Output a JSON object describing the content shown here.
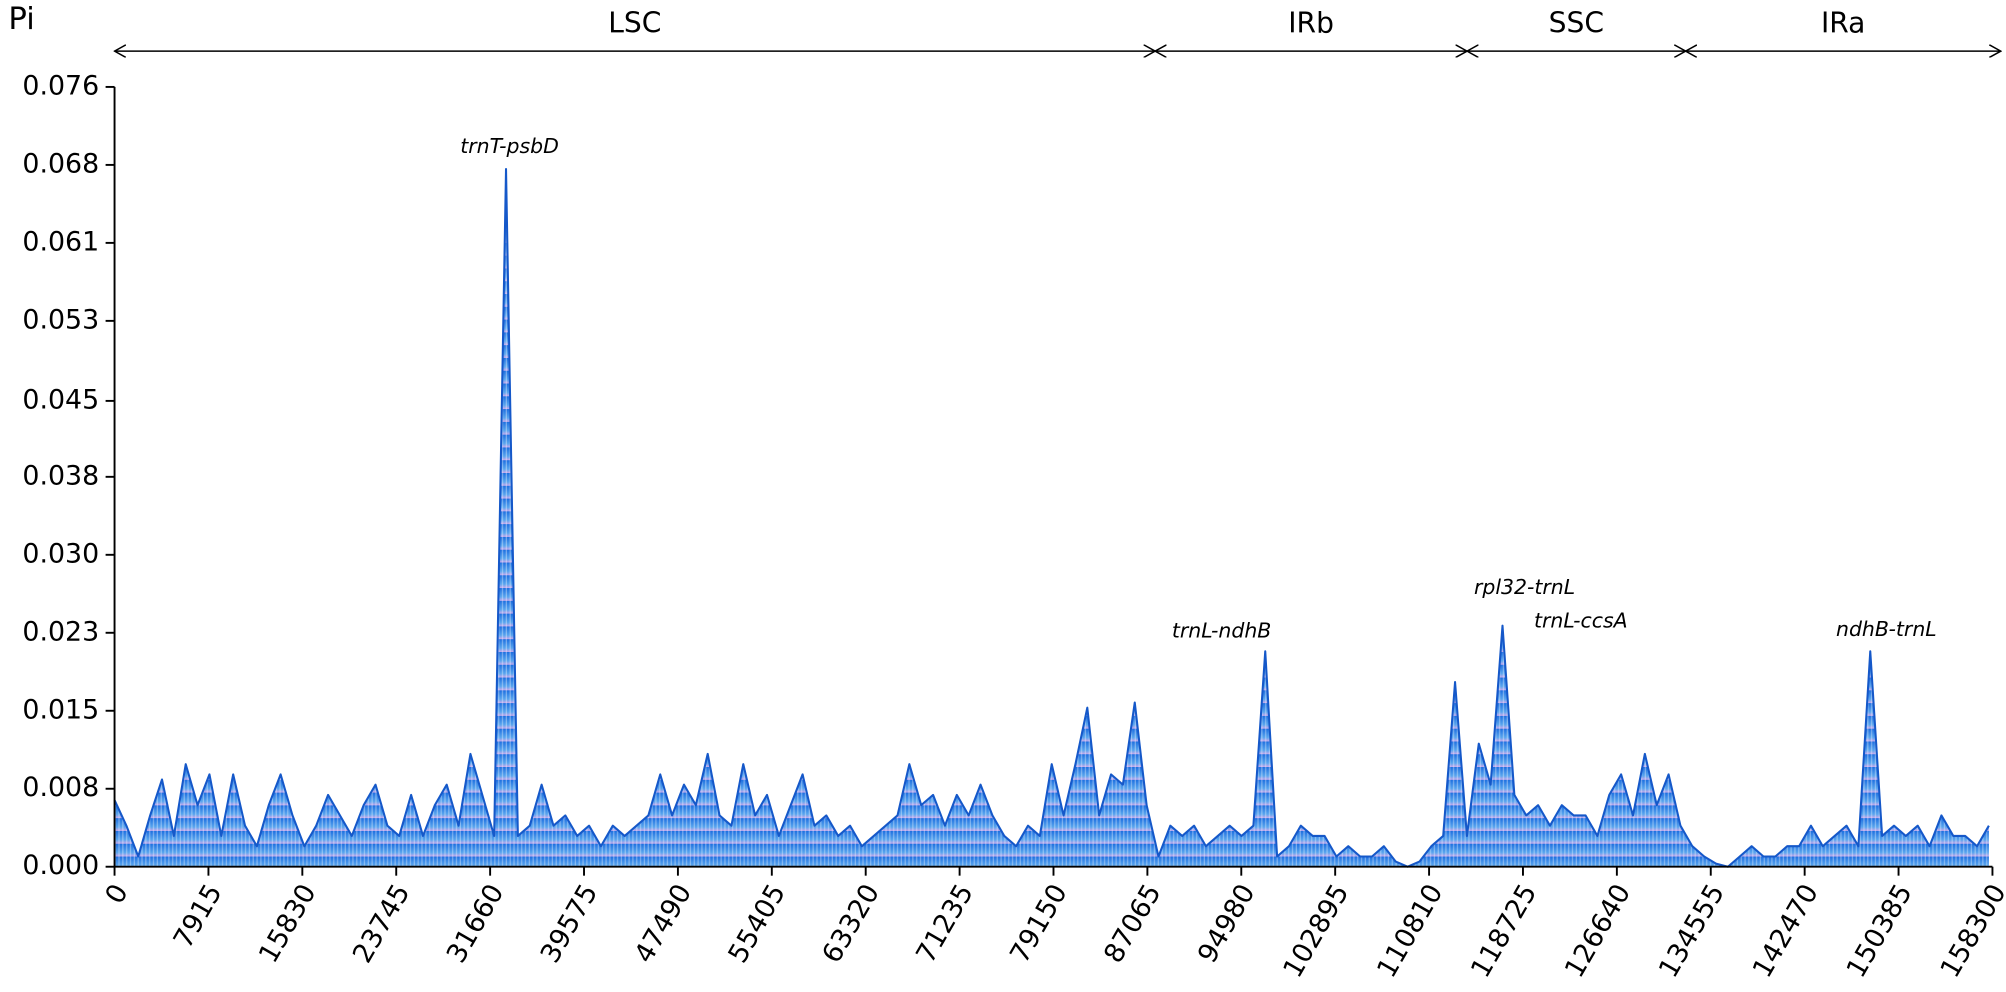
{
  "chart_data": {
    "type": "area",
    "y_label": "Pi",
    "color": "#1558c9",
    "x": [
      0,
      1000,
      2000,
      3000,
      4000,
      5000,
      6000,
      7000,
      8000,
      9000,
      10000,
      11000,
      12000,
      13000,
      14000,
      15000,
      16000,
      17000,
      18000,
      19000,
      20000,
      21000,
      22000,
      23000,
      24000,
      25000,
      26000,
      27000,
      28000,
      29000,
      30000,
      31000,
      32000,
      33000,
      34000,
      35000,
      36000,
      37000,
      38000,
      39000,
      40000,
      41000,
      42000,
      43000,
      44000,
      45000,
      46000,
      47000,
      48000,
      49000,
      50000,
      51000,
      52000,
      53000,
      54000,
      55000,
      56000,
      57000,
      58000,
      59000,
      60000,
      61000,
      62000,
      63000,
      64000,
      65000,
      66000,
      67000,
      68000,
      69000,
      70000,
      71000,
      72000,
      73000,
      74000,
      75000,
      76000,
      77000,
      78000,
      79000,
      80000,
      81000,
      82000,
      83000,
      84000,
      85000,
      86000,
      87000,
      88000,
      89000,
      90000,
      91000,
      92000,
      93000,
      94000,
      95000,
      96000,
      97000,
      98000,
      99000,
      100000,
      101000,
      102000,
      103000,
      104000,
      105000,
      106000,
      107000,
      108000,
      109000,
      110000,
      111000,
      112000,
      113000,
      114000,
      115000,
      116000,
      117000,
      118000,
      119000,
      120000,
      121000,
      122000,
      123000,
      124000,
      125000,
      126000,
      127000,
      128000,
      129000,
      130000,
      131000,
      132000,
      133000,
      134000,
      135000,
      136000,
      137000,
      138000,
      139000,
      140000,
      141000,
      142000,
      143000,
      144000,
      145000,
      146000,
      147000,
      148000,
      149000,
      150000,
      151000,
      152000,
      153000,
      154000,
      155000,
      156000,
      157000,
      158000
    ],
    "values": [
      0.0065,
      0.004,
      0.001,
      0.005,
      0.0085,
      0.003,
      0.01,
      0.006,
      0.009,
      0.003,
      0.009,
      0.004,
      0.002,
      0.006,
      0.009,
      0.005,
      0.002,
      0.004,
      0.007,
      0.005,
      0.003,
      0.006,
      0.008,
      0.004,
      0.003,
      0.007,
      0.003,
      0.006,
      0.008,
      0.004,
      0.011,
      0.007,
      0.003,
      0.068,
      0.003,
      0.004,
      0.008,
      0.004,
      0.005,
      0.003,
      0.004,
      0.002,
      0.004,
      0.003,
      0.004,
      0.005,
      0.009,
      0.005,
      0.008,
      0.006,
      0.011,
      0.005,
      0.004,
      0.01,
      0.005,
      0.007,
      0.003,
      0.006,
      0.009,
      0.004,
      0.005,
      0.003,
      0.004,
      0.002,
      0.003,
      0.004,
      0.005,
      0.01,
      0.006,
      0.007,
      0.004,
      0.007,
      0.005,
      0.008,
      0.005,
      0.003,
      0.002,
      0.004,
      0.003,
      0.01,
      0.005,
      0.01,
      0.0155,
      0.005,
      0.009,
      0.008,
      0.016,
      0.006,
      0.001,
      0.004,
      0.003,
      0.004,
      0.002,
      0.003,
      0.004,
      0.003,
      0.004,
      0.021,
      0.001,
      0.002,
      0.004,
      0.003,
      0.003,
      0.001,
      0.002,
      0.001,
      0.001,
      0.002,
      0.0005,
      0,
      0.0005,
      0.002,
      0.003,
      0.018,
      0.003,
      0.012,
      0.008,
      0.0235,
      0.007,
      0.005,
      0.006,
      0.004,
      0.006,
      0.005,
      0.005,
      0.003,
      0.007,
      0.009,
      0.005,
      0.011,
      0.006,
      0.009,
      0.004,
      0.002,
      0.001,
      0.0003,
      0,
      0.001,
      0.002,
      0.001,
      0.001,
      0.002,
      0.002,
      0.004,
      0.002,
      0.003,
      0.004,
      0.002,
      0.021,
      0.003,
      0.004,
      0.003,
      0.004,
      0.002,
      0.005,
      0.003,
      0.003,
      0.002,
      0.004
    ],
    "xlim": [
      0,
      158300
    ],
    "xticks": [
      0,
      7915,
      15830,
      23745,
      31660,
      39575,
      47490,
      55405,
      63320,
      71235,
      79150,
      87065,
      94980,
      102895,
      110810,
      118725,
      126640,
      134555,
      142470,
      150385,
      158300
    ],
    "ylim": [
      0,
      0.076
    ],
    "yticks": [
      {
        "value": 0,
        "label": "0.000"
      },
      {
        "value": 0.0076,
        "label": "0.008"
      },
      {
        "value": 0.0152,
        "label": "0.015"
      },
      {
        "value": 0.0228,
        "label": "0.023"
      },
      {
        "value": 0.0304,
        "label": "0.030"
      },
      {
        "value": 0.038,
        "label": "0.038"
      },
      {
        "value": 0.0454,
        "label": "0.045"
      },
      {
        "value": 0.0532,
        "label": "0.053"
      },
      {
        "value": 0.0608,
        "label": "0.061"
      },
      {
        "value": 0.0684,
        "label": "0.068"
      },
      {
        "value": 0.076,
        "label": "0.076"
      }
    ],
    "regions": [
      {
        "name": "LSC",
        "start": 0,
        "end": 87717
      },
      {
        "name": "IRb",
        "start": 87717,
        "end": 114010
      },
      {
        "name": "SSC",
        "start": 114010,
        "end": 132437
      },
      {
        "name": "IRa",
        "start": 132437,
        "end": 159000
      }
    ],
    "annotations": [
      "trnT-psbD",
      "trnL-ndhB",
      "rpl32-trnL",
      "trnL-ccsA",
      "ndhB-trnL"
    ]
  }
}
